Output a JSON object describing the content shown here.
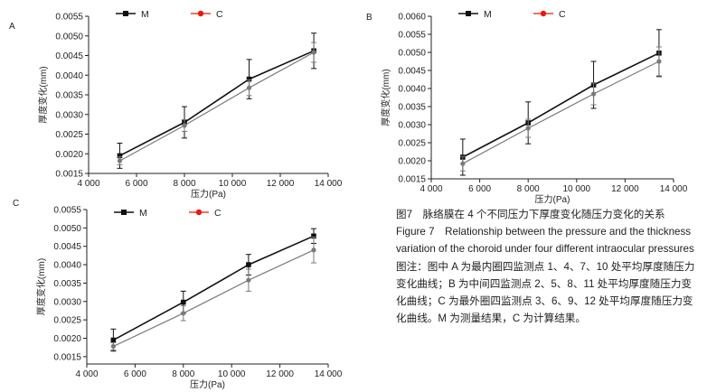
{
  "chart_data": [
    {
      "panel_label": "A",
      "type": "line",
      "xlabel": "压力(Pa)",
      "ylabel": "厚度变化(mm)",
      "xlim": [
        4000,
        14000
      ],
      "ylim": [
        0.0015,
        0.0055
      ],
      "xticks": [
        4000,
        6000,
        8000,
        10000,
        12000,
        14000
      ],
      "xtick_labels": [
        "4 000",
        "6 000",
        "8 000",
        "10 000",
        "12 000",
        "14 000"
      ],
      "yticks": [
        0.0015,
        0.002,
        0.0025,
        0.003,
        0.0035,
        0.004,
        0.0045,
        0.005,
        0.0055
      ],
      "ytick_labels": [
        "0.0015",
        "0.0020",
        "0.0025",
        "0.0030",
        "0.0035",
        "0.0040",
        "0.0045",
        "0.0050",
        "0.0055"
      ],
      "legend_position": "top",
      "series": [
        {
          "name": "M",
          "x": [
            5300,
            8000,
            10700,
            13400
          ],
          "y": [
            0.00195,
            0.0028,
            0.0039,
            0.00462
          ],
          "err": [
            0.00032,
            0.0004,
            0.0005,
            0.00045
          ]
        },
        {
          "name": "C",
          "x": [
            5300,
            8000,
            10700,
            13400
          ],
          "y": [
            0.00182,
            0.00272,
            0.00368,
            0.00458
          ],
          "err": [
            0.0001,
            0.00015,
            0.0002,
            0.00025
          ]
        }
      ]
    },
    {
      "panel_label": "B",
      "type": "line",
      "xlabel": "压力(Pa)",
      "ylabel": "厚度变化(mm)",
      "xlim": [
        4000,
        14000
      ],
      "ylim": [
        0.0015,
        0.006
      ],
      "xticks": [
        4000,
        6000,
        8000,
        10000,
        12000,
        14000
      ],
      "xtick_labels": [
        "4 000",
        "6 000",
        "8 000",
        "10 000",
        "12 000",
        "14 000"
      ],
      "yticks": [
        0.0015,
        0.002,
        0.0025,
        0.003,
        0.0035,
        0.004,
        0.0045,
        0.005,
        0.0055,
        0.006
      ],
      "ytick_labels": [
        "0.0015",
        "0.0020",
        "0.0025",
        "0.0030",
        "0.0035",
        "0.0040",
        "0.0045",
        "0.0050",
        "0.0055",
        "0.0060"
      ],
      "legend_position": "top",
      "series": [
        {
          "name": "M",
          "x": [
            5300,
            8000,
            10700,
            13400
          ],
          "y": [
            0.0021,
            0.00305,
            0.0041,
            0.00498
          ],
          "err": [
            0.0005,
            0.00058,
            0.00065,
            0.00065
          ]
        },
        {
          "name": "C",
          "x": [
            5300,
            8000,
            10700,
            13400
          ],
          "y": [
            0.00192,
            0.0029,
            0.00385,
            0.00475
          ],
          "err": [
            0.0002,
            0.00025,
            0.0003,
            0.0004
          ]
        }
      ]
    },
    {
      "panel_label": "C",
      "type": "line",
      "xlabel": "压力(Pa)",
      "ylabel": "厚度变化(mm)",
      "xlim": [
        4000,
        14000
      ],
      "ylim": [
        0.0013,
        0.0055
      ],
      "xticks": [
        4000,
        6000,
        8000,
        10000,
        12000,
        14000
      ],
      "xtick_labels": [
        "4 000",
        "6 000",
        "8 000",
        "10 000",
        "12 000",
        "14 000"
      ],
      "yticks": [
        0.0015,
        0.002,
        0.0025,
        0.003,
        0.0035,
        0.004,
        0.0045,
        0.005,
        0.0055
      ],
      "ytick_labels": [
        "0.0015",
        "0.0020",
        "0.0025",
        "0.0030",
        "0.0035",
        "0.0040",
        "0.0045",
        "0.0050",
        "0.0055"
      ],
      "legend_position": "top",
      "series": [
        {
          "name": "M",
          "x": [
            5100,
            8000,
            10700,
            13400
          ],
          "y": [
            0.00195,
            0.00298,
            0.004,
            0.00478
          ],
          "err": [
            0.0003,
            0.0003,
            0.00028,
            0.0002
          ]
        },
        {
          "name": "C",
          "x": [
            5100,
            8000,
            10700,
            13400
          ],
          "y": [
            0.00178,
            0.00268,
            0.00358,
            0.0044
          ],
          "err": [
            0.0001,
            0.0002,
            0.0003,
            0.00035
          ]
        }
      ]
    }
  ],
  "colors": {
    "M": "#111111",
    "C": "#7a7a7a",
    "C_legend_marker": "#e8190f"
  },
  "caption": {
    "zh_title": "图7　脉络膜在 4 个不同压力下厚度变化随压力变化的关系",
    "en_title": "Figure 7　Relationship between the pressure and the thickness variation of the choroid under four different intraocular pressures",
    "note": "图注：图中 A 为最内圈四监测点 1、4、7、10 处平均厚度随压力变化曲线；B 为中间四监测点 2、5、8、11 处平均厚度随压力变化曲线；C 为最外圈四监测点 3、6、9、12 处平均厚度随压力变化曲线。M 为测量结果，C 为计算结果。"
  }
}
